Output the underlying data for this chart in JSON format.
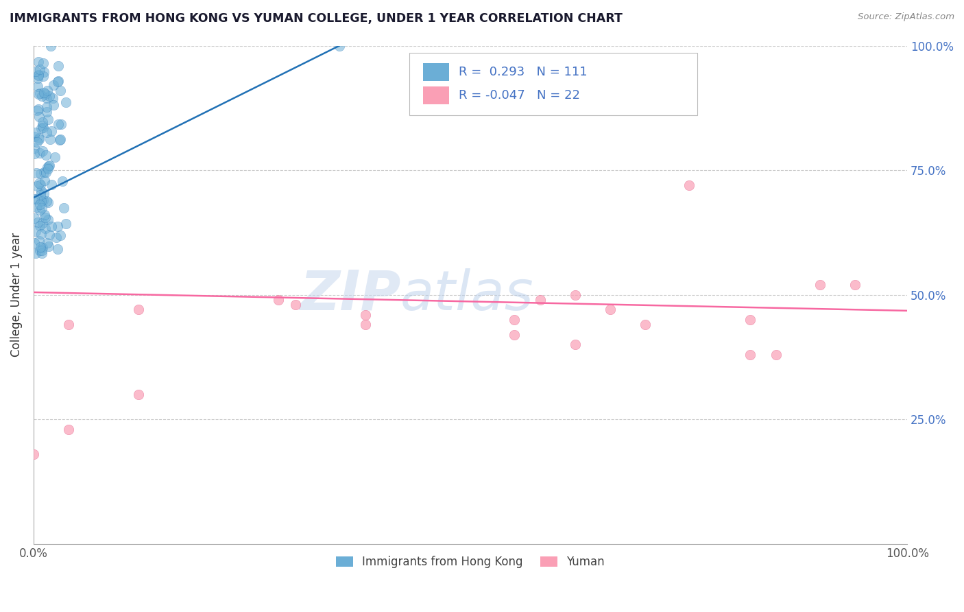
{
  "title": "IMMIGRANTS FROM HONG KONG VS YUMAN COLLEGE, UNDER 1 YEAR CORRELATION CHART",
  "source_text": "Source: ZipAtlas.com",
  "ylabel": "College, Under 1 year",
  "xlim": [
    0.0,
    1.0
  ],
  "ylim": [
    0.0,
    1.0
  ],
  "legend_labels": [
    "Immigrants from Hong Kong",
    "Yuman"
  ],
  "r_hk": 0.293,
  "n_hk": 111,
  "r_yuman": -0.047,
  "n_yuman": 22,
  "hk_color": "#6baed6",
  "yuman_color": "#fa9fb5",
  "hk_line_color": "#2171b5",
  "yuman_line_color": "#f768a1",
  "watermark_zip": "ZIP",
  "watermark_atlas": "atlas",
  "ytick_positions": [
    0.25,
    0.5,
    0.75,
    1.0
  ],
  "ytick_labels": [
    "25.0%",
    "50.0%",
    "75.0%",
    "100.0%"
  ],
  "xtick_positions": [
    0.0,
    1.0
  ],
  "xtick_labels": [
    "0.0%",
    "100.0%"
  ]
}
